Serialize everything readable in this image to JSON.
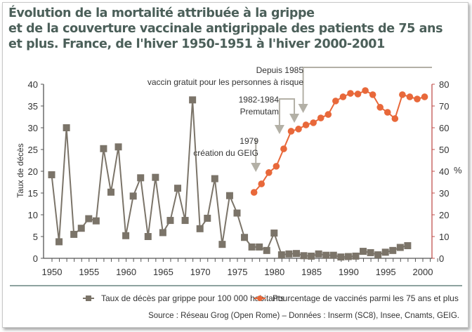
{
  "title": {
    "lines": [
      "Évolution de la mortalité attribuée à la grippe",
      "et de la couverture vaccinale antigrippale des patients de 75 ans",
      "et plus. France, de l'hiver 1950-1951 à l'hiver 2000-2001"
    ]
  },
  "colors": {
    "title": "#4b5f59",
    "mortality_series": "#7b7469",
    "vaccination_series": "#e8683a",
    "right_axis": "#c0504d",
    "annotation_arrow": "#b3b0a6",
    "divider": "#4b6b66"
  },
  "chart_data": {
    "type": "line",
    "title": "Évolution de la mortalité attribuée à la grippe et de la couverture vaccinale antigrippale des patients de 75 ans et plus. France, de l'hiver 1950-1951 à l'hiver 2000-2001",
    "xlabel": "",
    "x_ticks": [
      1950,
      1955,
      1960,
      1965,
      1970,
      1975,
      1980,
      1985,
      1990,
      1995,
      2000
    ],
    "x_range": [
      1950,
      2002
    ],
    "y_left": {
      "label": "Taux de décès",
      "range": [
        0,
        40
      ],
      "ticks": [
        0,
        5,
        10,
        15,
        20,
        25,
        30,
        35,
        40
      ]
    },
    "y_right": {
      "label": "%",
      "range": [
        0,
        80
      ],
      "ticks": [
        0,
        10,
        20,
        30,
        40,
        50,
        60,
        70,
        80
      ]
    },
    "grid": false,
    "legend_placement": "bottom",
    "series": [
      {
        "name": "Taux de décès par grippe  pour 100 000 habitants",
        "axis": "left",
        "marker": "square",
        "x": [
          1950,
          1951,
          1952,
          1953,
          1954,
          1955,
          1956,
          1957,
          1958,
          1959,
          1960,
          1961,
          1962,
          1963,
          1964,
          1965,
          1966,
          1967,
          1968,
          1969,
          1970,
          1971,
          1972,
          1973,
          1974,
          1975,
          1976,
          1977,
          1978,
          1979,
          1980,
          1981,
          1982,
          1983,
          1984,
          1985,
          1986,
          1987,
          1988,
          1989,
          1990,
          1991,
          1992,
          1993,
          1994,
          1995,
          1996,
          1997,
          1998
        ],
        "values": [
          19.2,
          3.8,
          30.0,
          5.5,
          6.9,
          9.1,
          8.6,
          25.2,
          15.2,
          25.6,
          5.2,
          14.3,
          18.5,
          5.0,
          18.6,
          5.9,
          8.7,
          16.1,
          8.7,
          36.4,
          6.8,
          9.2,
          18.3,
          3.2,
          14.4,
          10.4,
          4.8,
          2.6,
          2.6,
          1.8,
          5.8,
          0.8,
          1.0,
          1.1,
          0.6,
          0.5,
          1.0,
          0.7,
          0.7,
          0.3,
          0.4,
          0.5,
          1.6,
          1.3,
          0.8,
          1.4,
          1.8,
          2.5,
          2.9
        ]
      },
      {
        "name": "Pourcentage de vaccinés parmi les 75 ans et plus",
        "axis": "right",
        "marker": "circle",
        "x": [
          1978,
          1979,
          1980,
          1981,
          1982,
          1983,
          1984,
          1985,
          1986,
          1987,
          1988,
          1989,
          1990,
          1991,
          1992,
          1993,
          1994,
          1995,
          1996,
          1997,
          1998,
          1999,
          2000,
          2001
        ],
        "values": [
          30.3,
          34.2,
          39.4,
          42.3,
          50.3,
          58.4,
          59.4,
          61.3,
          62.3,
          64.5,
          66.1,
          72.3,
          74.2,
          75.8,
          75.5,
          77.1,
          75.2,
          69.4,
          67.1,
          64.2,
          75.2,
          74.2,
          73.2,
          74.2
        ]
      }
    ],
    "annotations": [
      {
        "id": "geig",
        "lines": [
          "1979",
          "création du GEIG"
        ],
        "year": 1979
      },
      {
        "id": "premutam",
        "lines": [
          "1982-1984",
          "Premutam"
        ],
        "years": [
          1982,
          1984
        ]
      },
      {
        "id": "gratuit",
        "lines": [
          "Depuis 1985",
          "vaccin gratuit pour les personnes à risque"
        ],
        "years": [
          1985,
          2002
        ]
      }
    ]
  },
  "legend": {
    "items": [
      {
        "label": "Taux de décès par grippe  pour 100 000 habitants",
        "marker": "square"
      },
      {
        "label": "Pourcentage de vaccinés parmi les 75 ans et plus",
        "marker": "circle"
      }
    ]
  },
  "source": "Source : Réseau Grog (Open Rome) – Données : Inserm (SC8), Insee, Cnamts, GEIG."
}
